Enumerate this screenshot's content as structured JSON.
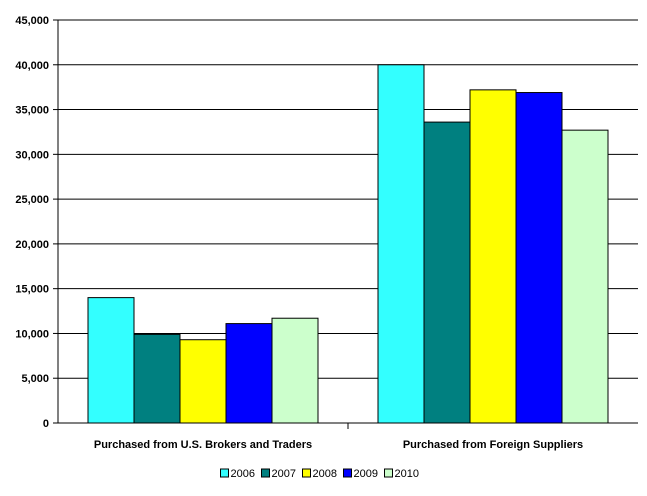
{
  "chart_data": {
    "type": "bar",
    "title": "",
    "xlabel": "",
    "ylabel": "",
    "ylim": [
      0,
      45000
    ],
    "ytick_step": 5000,
    "grid": true,
    "legend_position": "bottom",
    "categories": [
      "Purchased from U.S. Brokers and Traders",
      "Purchased from Foreign Suppliers"
    ],
    "series": [
      {
        "name": "2006",
        "color": "#33FFFF",
        "values": [
          14000,
          40000
        ]
      },
      {
        "name": "2007",
        "color": "#008080",
        "values": [
          9900,
          33600
        ]
      },
      {
        "name": "2008",
        "color": "#FFFF00",
        "values": [
          9300,
          37200
        ]
      },
      {
        "name": "2009",
        "color": "#0000FF",
        "values": [
          11100,
          36900
        ]
      },
      {
        "name": "2010",
        "color": "#CCFFCC",
        "values": [
          11700,
          32700
        ]
      }
    ]
  }
}
